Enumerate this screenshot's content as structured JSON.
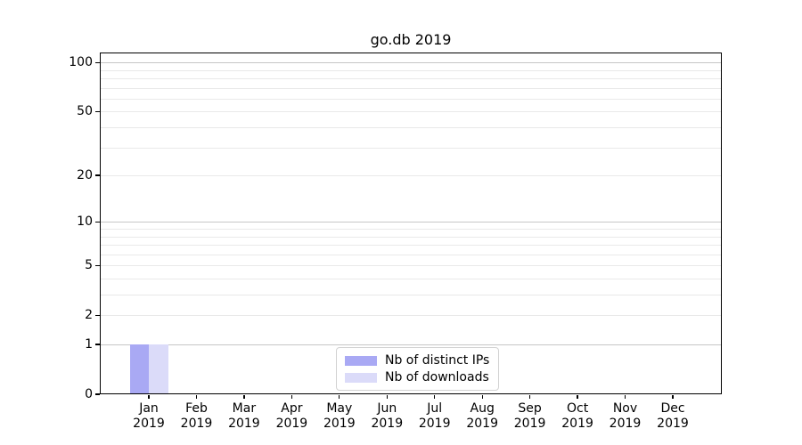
{
  "figure": {
    "title": "go.db 2019"
  },
  "legend": {
    "items": [
      {
        "label": "Nb of distinct IPs",
        "color": "#a9a9f4"
      },
      {
        "label": "Nb of downloads",
        "color": "#dbdbf9"
      }
    ]
  },
  "axes": {
    "y_tick_labels": [
      "0",
      "1",
      "2",
      "5",
      "10",
      "20",
      "50",
      "100"
    ],
    "x_months": [
      "Jan",
      "Feb",
      "Mar",
      "Apr",
      "May",
      "Jun",
      "Jul",
      "Aug",
      "Sep",
      "Oct",
      "Nov",
      "Dec"
    ],
    "x_year": "2019"
  },
  "chart_data": {
    "type": "bar",
    "title": "go.db 2019",
    "categories": [
      "Jan 2019",
      "Feb 2019",
      "Mar 2019",
      "Apr 2019",
      "May 2019",
      "Jun 2019",
      "Jul 2019",
      "Aug 2019",
      "Sep 2019",
      "Oct 2019",
      "Nov 2019",
      "Dec 2019"
    ],
    "series": [
      {
        "name": "Nb of distinct IPs",
        "color": "#a9a9f4",
        "values": [
          1,
          0,
          0,
          0,
          0,
          0,
          0,
          0,
          0,
          0,
          0,
          0
        ]
      },
      {
        "name": "Nb of downloads",
        "color": "#dbdbf9",
        "values": [
          1,
          0,
          0,
          0,
          0,
          0,
          0,
          0,
          0,
          0,
          0,
          0
        ]
      }
    ],
    "xlabel": "",
    "ylabel": "",
    "y_scale": "log1p",
    "ylim": [
      0,
      115
    ],
    "y_major_ticks": [
      0,
      1,
      2,
      5,
      10,
      20,
      50,
      100
    ],
    "y_minor_ticks": [
      3,
      4,
      6,
      7,
      8,
      9,
      30,
      40,
      60,
      70,
      80,
      90
    ],
    "y_decade_ticks": [
      1,
      10,
      100
    ],
    "grid": true,
    "grid_major_color": "#c6c6c6",
    "grid_minor_color": "#e9e9e9",
    "legend_position": "lower center"
  }
}
